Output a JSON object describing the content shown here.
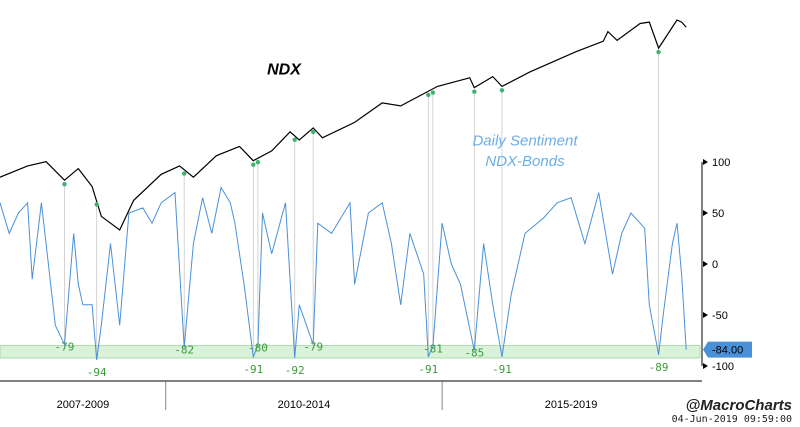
{
  "chart_data": {
    "type": "line",
    "title": "",
    "series": [
      {
        "name": "NDX",
        "color": "#000000",
        "axis": "hidden",
        "points": [
          [
            "2007-01",
            1800
          ],
          [
            "2007-07",
            2000
          ],
          [
            "2007-11",
            2080
          ],
          [
            "2008-03",
            1750
          ],
          [
            "2008-06",
            1950
          ],
          [
            "2008-09",
            1650
          ],
          [
            "2008-11",
            1250
          ],
          [
            "2009-03",
            1100
          ],
          [
            "2009-06",
            1450
          ],
          [
            "2009-12",
            1850
          ],
          [
            "2010-04",
            2000
          ],
          [
            "2010-07",
            1800
          ],
          [
            "2010-12",
            2200
          ],
          [
            "2011-05",
            2400
          ],
          [
            "2011-08",
            2100
          ],
          [
            "2011-12",
            2300
          ],
          [
            "2012-04",
            2750
          ],
          [
            "2012-06",
            2550
          ],
          [
            "2012-09",
            2850
          ],
          [
            "2012-11",
            2600
          ],
          [
            "2013-06",
            3000
          ],
          [
            "2013-12",
            3600
          ],
          [
            "2014-04",
            3500
          ],
          [
            "2014-12",
            4200
          ],
          [
            "2015-07",
            4550
          ],
          [
            "2015-08",
            4150
          ],
          [
            "2015-12",
            4600
          ],
          [
            "2016-02",
            4200
          ],
          [
            "2016-08",
            4800
          ],
          [
            "2017-06",
            5800
          ],
          [
            "2017-12",
            6400
          ],
          [
            "2018-01",
            7000
          ],
          [
            "2018-03",
            6450
          ],
          [
            "2018-08",
            7550
          ],
          [
            "2018-10",
            7650
          ],
          [
            "2018-12",
            6000
          ],
          [
            "2019-04",
            7800
          ],
          [
            "2019-05",
            7650
          ],
          [
            "2019-06",
            7300
          ]
        ]
      },
      {
        "name": "NDX-Bonds",
        "color": "#4a90d9",
        "axis": "right",
        "points": [
          [
            "2007-01",
            60
          ],
          [
            "2007-03",
            30
          ],
          [
            "2007-05",
            50
          ],
          [
            "2007-07",
            60
          ],
          [
            "2007-08",
            -15
          ],
          [
            "2007-10",
            60
          ],
          [
            "2007-12",
            -20
          ],
          [
            "2008-01",
            -60
          ],
          [
            "2008-03",
            -79
          ],
          [
            "2008-05",
            30
          ],
          [
            "2008-06",
            -20
          ],
          [
            "2008-07",
            -40
          ],
          [
            "2008-09",
            -40
          ],
          [
            "2008-10",
            -94
          ],
          [
            "2008-11",
            -60
          ],
          [
            "2009-01",
            20
          ],
          [
            "2009-03",
            -60
          ],
          [
            "2009-05",
            50
          ],
          [
            "2009-08",
            55
          ],
          [
            "2009-10",
            40
          ],
          [
            "2009-12",
            60
          ],
          [
            "2010-03",
            70
          ],
          [
            "2010-05",
            -82
          ],
          [
            "2010-07",
            20
          ],
          [
            "2010-09",
            65
          ],
          [
            "2010-11",
            30
          ],
          [
            "2011-01",
            75
          ],
          [
            "2011-03",
            60
          ],
          [
            "2011-04",
            40
          ],
          [
            "2011-06",
            -20
          ],
          [
            "2011-08",
            -91
          ],
          [
            "2011-09",
            -80
          ],
          [
            "2011-10",
            50
          ],
          [
            "2011-12",
            10
          ],
          [
            "2012-03",
            60
          ],
          [
            "2012-05",
            -92
          ],
          [
            "2012-06",
            -40
          ],
          [
            "2012-09",
            -79
          ],
          [
            "2012-10",
            40
          ],
          [
            "2013-01",
            30
          ],
          [
            "2013-05",
            60
          ],
          [
            "2013-06",
            -20
          ],
          [
            "2013-09",
            50
          ],
          [
            "2013-12",
            60
          ],
          [
            "2014-02",
            20
          ],
          [
            "2014-04",
            -40
          ],
          [
            "2014-06",
            30
          ],
          [
            "2014-09",
            -10
          ],
          [
            "2014-10",
            -91
          ],
          [
            "2014-11",
            -81
          ],
          [
            "2015-01",
            40
          ],
          [
            "2015-03",
            0
          ],
          [
            "2015-05",
            -20
          ],
          [
            "2015-08",
            -85
          ],
          [
            "2015-10",
            20
          ],
          [
            "2015-12",
            -40
          ],
          [
            "2016-02",
            -91
          ],
          [
            "2016-04",
            -30
          ],
          [
            "2016-07",
            30
          ],
          [
            "2016-11",
            45
          ],
          [
            "2017-02",
            60
          ],
          [
            "2017-05",
            65
          ],
          [
            "2017-08",
            20
          ],
          [
            "2017-11",
            70
          ],
          [
            "2018-02",
            -10
          ],
          [
            "2018-04",
            30
          ],
          [
            "2018-06",
            50
          ],
          [
            "2018-09",
            35
          ],
          [
            "2018-10",
            -40
          ],
          [
            "2018-12",
            -89
          ],
          [
            "2019-01",
            -50
          ],
          [
            "2019-03",
            20
          ],
          [
            "2019-04",
            40
          ],
          [
            "2019-05",
            -10
          ],
          [
            "2019-06",
            -84
          ]
        ]
      }
    ],
    "y_axis_right": {
      "ylim": [
        -100,
        100
      ],
      "ticks": [
        100,
        50,
        0,
        -50,
        -100
      ]
    },
    "current_value": {
      "label": "-84.00",
      "value": -84
    },
    "extreme_zone": [
      -100,
      -80
    ],
    "annotations": [
      {
        "text": "NDX",
        "series": "NDX",
        "at": [
          "2011-11",
          4700
        ]
      },
      {
        "text": "Daily Sentiment",
        "series": "NDX-Bonds",
        "at": [
          "2016-07",
          116
        ]
      },
      {
        "text": "NDX-Bonds",
        "series": "NDX-Bonds",
        "at": [
          "2016-07",
          96
        ]
      }
    ],
    "low_labels": [
      {
        "text": "-79",
        "date": "2008-03",
        "value": -79
      },
      {
        "text": "-94",
        "date": "2008-10",
        "value": -94
      },
      {
        "text": "-82",
        "date": "2010-05",
        "value": -82
      },
      {
        "text": "-91",
        "date": "2011-08",
        "value": -91
      },
      {
        "text": "-80",
        "date": "2011-09",
        "value": -80
      },
      {
        "text": "-92",
        "date": "2012-05",
        "value": -92
      },
      {
        "text": "-79",
        "date": "2012-09",
        "value": -79
      },
      {
        "text": "-91",
        "date": "2014-10",
        "value": -91
      },
      {
        "text": "-81",
        "date": "2014-11",
        "value": -81
      },
      {
        "text": "-85",
        "date": "2015-08",
        "value": -85
      },
      {
        "text": "-91",
        "date": "2016-02",
        "value": -91
      },
      {
        "text": "-89",
        "date": "2018-12",
        "value": -89
      }
    ],
    "x_axis": {
      "range": [
        "2007-01",
        "2019-09"
      ],
      "periods": [
        {
          "label": "2007-2009",
          "start": "2007-01",
          "end": "2010-01"
        },
        {
          "label": "2010-2014",
          "start": "2010-01",
          "end": "2015-01"
        },
        {
          "label": "2015-2019",
          "start": "2015-01",
          "end": "2019-09"
        }
      ]
    },
    "grid": false,
    "legend": "none"
  },
  "footer": {
    "handle": "@MacroCharts",
    "timestamp": "04-Jun-2019 09:59:00"
  },
  "colors": {
    "ndx_line": "#000000",
    "sentiment_line": "#4a90d9",
    "green_marks": "#3cb371",
    "zone_fill": "#d9f2d9",
    "value_box": "#4a90d9"
  }
}
